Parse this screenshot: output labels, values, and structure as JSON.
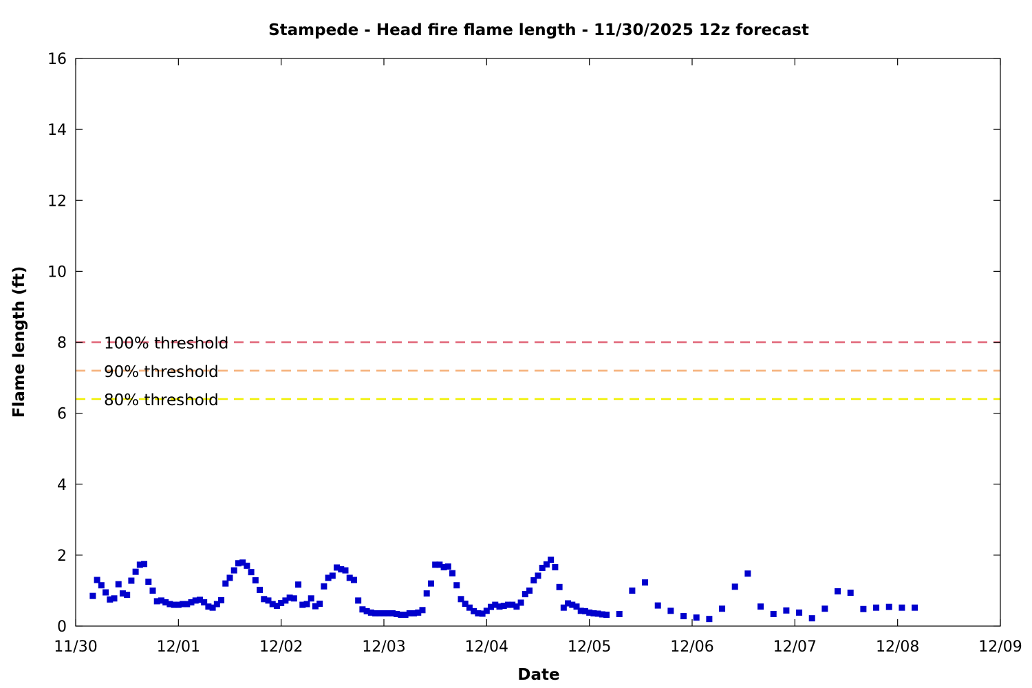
{
  "chart_data": {
    "type": "scatter",
    "title": "Stampede - Head fire flame length - 11/30/2025 12z forecast",
    "xlabel": "Date",
    "ylabel": "Flame length (ft)",
    "xlim": [
      "11/30",
      "12/09"
    ],
    "ylim": [
      0,
      16
    ],
    "x_ticks": [
      "11/30",
      "12/01",
      "12/02",
      "12/03",
      "12/04",
      "12/05",
      "12/06",
      "12/07",
      "12/08",
      "12/09"
    ],
    "y_ticks": [
      "0",
      "2",
      "4",
      "6",
      "8",
      "10",
      "12",
      "14",
      "16"
    ],
    "grid": false,
    "thresholds": [
      {
        "label": "100% threshold",
        "value": 8.0,
        "color": "#e06377"
      },
      {
        "label": "90% threshold",
        "value": 7.2,
        "color": "#f5b07a"
      },
      {
        "label": "80% threshold",
        "value": 6.4,
        "color": "#f0f000"
      }
    ],
    "series": [
      {
        "marker_color": "#0000cc",
        "points": [
          [
            "11/30 04:00",
            0.85
          ],
          [
            "11/30 05:00",
            1.3
          ],
          [
            "11/30 06:00",
            1.15
          ],
          [
            "11/30 07:00",
            0.95
          ],
          [
            "11/30 08:00",
            0.75
          ],
          [
            "11/30 09:00",
            0.78
          ],
          [
            "11/30 10:00",
            1.18
          ],
          [
            "11/30 11:00",
            0.92
          ],
          [
            "11/30 12:00",
            0.88
          ],
          [
            "11/30 13:00",
            1.28
          ],
          [
            "11/30 14:00",
            1.53
          ],
          [
            "11/30 15:00",
            1.73
          ],
          [
            "11/30 16:00",
            1.75
          ],
          [
            "11/30 17:00",
            1.25
          ],
          [
            "11/30 18:00",
            1.0
          ],
          [
            "11/30 19:00",
            0.7
          ],
          [
            "11/30 20:00",
            0.72
          ],
          [
            "11/30 21:00",
            0.67
          ],
          [
            "11/30 22:00",
            0.62
          ],
          [
            "11/30 23:00",
            0.6
          ],
          [
            "12/01 00:00",
            0.6
          ],
          [
            "12/01 01:00",
            0.62
          ],
          [
            "12/01 02:00",
            0.62
          ],
          [
            "12/01 03:00",
            0.67
          ],
          [
            "12/01 04:00",
            0.72
          ],
          [
            "12/01 05:00",
            0.74
          ],
          [
            "12/01 06:00",
            0.67
          ],
          [
            "12/01 07:00",
            0.55
          ],
          [
            "12/01 08:00",
            0.52
          ],
          [
            "12/01 09:00",
            0.62
          ],
          [
            "12/01 10:00",
            0.73
          ],
          [
            "12/01 11:00",
            1.2
          ],
          [
            "12/01 12:00",
            1.36
          ],
          [
            "12/01 13:00",
            1.57
          ],
          [
            "12/01 14:00",
            1.77
          ],
          [
            "12/01 15:00",
            1.79
          ],
          [
            "12/01 16:00",
            1.7
          ],
          [
            "12/01 17:00",
            1.52
          ],
          [
            "12/01 18:00",
            1.29
          ],
          [
            "12/01 19:00",
            1.02
          ],
          [
            "12/01 20:00",
            0.76
          ],
          [
            "12/01 21:00",
            0.72
          ],
          [
            "12/01 22:00",
            0.62
          ],
          [
            "12/01 23:00",
            0.57
          ],
          [
            "12/02 00:00",
            0.65
          ],
          [
            "12/02 01:00",
            0.72
          ],
          [
            "12/02 02:00",
            0.8
          ],
          [
            "12/02 03:00",
            0.78
          ],
          [
            "12/02 04:00",
            1.17
          ],
          [
            "12/02 05:00",
            0.6
          ],
          [
            "12/02 06:00",
            0.62
          ],
          [
            "12/02 07:00",
            0.78
          ],
          [
            "12/02 08:00",
            0.56
          ],
          [
            "12/02 09:00",
            0.63
          ],
          [
            "12/02 10:00",
            1.12
          ],
          [
            "12/02 11:00",
            1.36
          ],
          [
            "12/02 12:00",
            1.42
          ],
          [
            "12/02 13:00",
            1.65
          ],
          [
            "12/02 14:00",
            1.6
          ],
          [
            "12/02 15:00",
            1.57
          ],
          [
            "12/02 16:00",
            1.36
          ],
          [
            "12/02 17:00",
            1.3
          ],
          [
            "12/02 18:00",
            0.72
          ],
          [
            "12/02 19:00",
            0.47
          ],
          [
            "12/02 20:00",
            0.42
          ],
          [
            "12/02 21:00",
            0.38
          ],
          [
            "12/02 22:00",
            0.36
          ],
          [
            "12/02 23:00",
            0.36
          ],
          [
            "12/03 00:00",
            0.36
          ],
          [
            "12/03 01:00",
            0.36
          ],
          [
            "12/03 02:00",
            0.36
          ],
          [
            "12/03 03:00",
            0.34
          ],
          [
            "12/03 04:00",
            0.32
          ],
          [
            "12/03 05:00",
            0.32
          ],
          [
            "12/03 06:00",
            0.36
          ],
          [
            "12/03 07:00",
            0.36
          ],
          [
            "12/03 08:00",
            0.38
          ],
          [
            "12/03 09:00",
            0.45
          ],
          [
            "12/03 10:00",
            0.92
          ],
          [
            "12/03 11:00",
            1.2
          ],
          [
            "12/03 12:00",
            1.73
          ],
          [
            "12/03 13:00",
            1.73
          ],
          [
            "12/03 14:00",
            1.66
          ],
          [
            "12/03 15:00",
            1.68
          ],
          [
            "12/03 16:00",
            1.49
          ],
          [
            "12/03 17:00",
            1.15
          ],
          [
            "12/03 18:00",
            0.76
          ],
          [
            "12/03 19:00",
            0.63
          ],
          [
            "12/03 20:00",
            0.52
          ],
          [
            "12/03 21:00",
            0.42
          ],
          [
            "12/03 22:00",
            0.36
          ],
          [
            "12/03 23:00",
            0.35
          ],
          [
            "12/04 00:00",
            0.43
          ],
          [
            "12/04 01:00",
            0.54
          ],
          [
            "12/04 02:00",
            0.6
          ],
          [
            "12/04 03:00",
            0.55
          ],
          [
            "12/04 04:00",
            0.57
          ],
          [
            "12/04 05:00",
            0.6
          ],
          [
            "12/04 06:00",
            0.6
          ],
          [
            "12/04 07:00",
            0.55
          ],
          [
            "12/04 08:00",
            0.66
          ],
          [
            "12/04 09:00",
            0.9
          ],
          [
            "12/04 10:00",
            1.0
          ],
          [
            "12/04 11:00",
            1.29
          ],
          [
            "12/04 12:00",
            1.42
          ],
          [
            "12/04 13:00",
            1.64
          ],
          [
            "12/04 14:00",
            1.74
          ],
          [
            "12/04 15:00",
            1.87
          ],
          [
            "12/04 16:00",
            1.66
          ],
          [
            "12/04 17:00",
            1.1
          ],
          [
            "12/04 18:00",
            0.52
          ],
          [
            "12/04 19:00",
            0.64
          ],
          [
            "12/04 20:00",
            0.6
          ],
          [
            "12/04 21:00",
            0.55
          ],
          [
            "12/04 22:00",
            0.43
          ],
          [
            "12/04 23:00",
            0.42
          ],
          [
            "12/05 00:00",
            0.38
          ],
          [
            "12/05 01:00",
            0.36
          ],
          [
            "12/05 02:00",
            0.35
          ],
          [
            "12/05 03:00",
            0.33
          ],
          [
            "12/05 04:00",
            0.32
          ],
          [
            "12/05 07:00",
            0.34
          ],
          [
            "12/05 10:00",
            1.0
          ],
          [
            "12/05 13:00",
            1.23
          ],
          [
            "12/05 16:00",
            0.58
          ],
          [
            "12/05 19:00",
            0.43
          ],
          [
            "12/05 22:00",
            0.28
          ],
          [
            "12/06 01:00",
            0.24
          ],
          [
            "12/06 04:00",
            0.2
          ],
          [
            "12/06 07:00",
            0.49
          ],
          [
            "12/06 10:00",
            1.11
          ],
          [
            "12/06 13:00",
            1.48
          ],
          [
            "12/06 16:00",
            0.55
          ],
          [
            "12/06 19:00",
            0.34
          ],
          [
            "12/06 22:00",
            0.44
          ],
          [
            "12/07 01:00",
            0.38
          ],
          [
            "12/07 04:00",
            0.22
          ],
          [
            "12/07 07:00",
            0.49
          ],
          [
            "12/07 10:00",
            0.98
          ],
          [
            "12/07 13:00",
            0.94
          ],
          [
            "12/07 16:00",
            0.48
          ],
          [
            "12/07 19:00",
            0.52
          ],
          [
            "12/07 22:00",
            0.54
          ],
          [
            "12/08 01:00",
            0.52
          ],
          [
            "12/08 04:00",
            0.52
          ]
        ]
      }
    ]
  }
}
